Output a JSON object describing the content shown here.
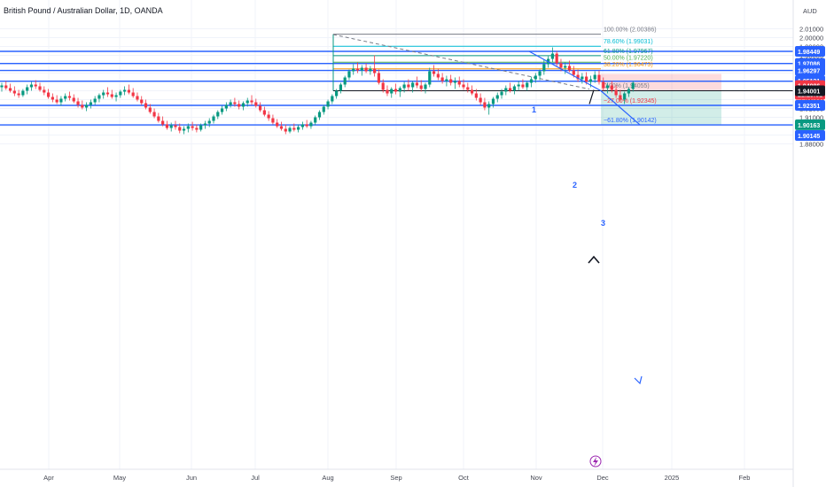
{
  "header": {
    "symbol_title": "British Pound / Australian Dollar, 1D, OANDA",
    "currency": "AUD"
  },
  "chart_data": {
    "type": "candlestick",
    "ylim": [
      1.88,
      2.015
    ],
    "y_ticks": [
      "2.01000",
      "2.00000",
      "1.99000",
      "1.98000",
      "1.97000",
      "1.96000",
      "1.95000",
      "1.94000",
      "1.93000",
      "1.92000",
      "1.91000",
      "1.90000",
      "1.89000",
      "1.88000"
    ],
    "x_ticks": [
      "Apr",
      "May",
      "Jun",
      "Jul",
      "Aug",
      "Sep",
      "Oct",
      "Nov",
      "Dec",
      "2025",
      "Feb"
    ],
    "series": [
      {
        "type": "candlestick",
        "values": [
          [
            1.944,
            1.949,
            1.939,
            1.946
          ],
          [
            1.946,
            1.951,
            1.941,
            1.943
          ],
          [
            1.943,
            1.948,
            1.938,
            1.94
          ],
          [
            1.94,
            1.945,
            1.934,
            1.937
          ],
          [
            1.937,
            1.941,
            1.932,
            1.935
          ],
          [
            1.935,
            1.942,
            1.933,
            1.94
          ],
          [
            1.94,
            1.947,
            1.936,
            1.944
          ],
          [
            1.944,
            1.95,
            1.94,
            1.947
          ],
          [
            1.947,
            1.952,
            1.942,
            1.945
          ],
          [
            1.945,
            1.949,
            1.939,
            1.941
          ],
          [
            1.941,
            1.945,
            1.935,
            1.938
          ],
          [
            1.938,
            1.942,
            1.931,
            1.933
          ],
          [
            1.933,
            1.937,
            1.927,
            1.93
          ],
          [
            1.93,
            1.935,
            1.925,
            1.927
          ],
          [
            1.927,
            1.934,
            1.923,
            1.931
          ],
          [
            1.931,
            1.937,
            1.928,
            1.934
          ],
          [
            1.934,
            1.939,
            1.929,
            1.932
          ],
          [
            1.932,
            1.936,
            1.926,
            1.928
          ],
          [
            1.928,
            1.932,
            1.921,
            1.924
          ],
          [
            1.924,
            1.929,
            1.919,
            1.921
          ],
          [
            1.921,
            1.927,
            1.917,
            1.924
          ],
          [
            1.924,
            1.93,
            1.92,
            1.927
          ],
          [
            1.927,
            1.934,
            1.924,
            1.931
          ],
          [
            1.931,
            1.937,
            1.927,
            1.935
          ],
          [
            1.935,
            1.941,
            1.931,
            1.938
          ],
          [
            1.938,
            1.944,
            1.933,
            1.936
          ],
          [
            1.936,
            1.941,
            1.931,
            1.933
          ],
          [
            1.933,
            1.938,
            1.928,
            1.935
          ],
          [
            1.935,
            1.941,
            1.932,
            1.939
          ],
          [
            1.939,
            1.945,
            1.935,
            1.941
          ],
          [
            1.941,
            1.947,
            1.936,
            1.938
          ],
          [
            1.938,
            1.943,
            1.932,
            1.934
          ],
          [
            1.934,
            1.938,
            1.928,
            1.93
          ],
          [
            1.93,
            1.934,
            1.924,
            1.926
          ],
          [
            1.926,
            1.93,
            1.919,
            1.921
          ],
          [
            1.921,
            1.925,
            1.914,
            1.916
          ],
          [
            1.916,
            1.92,
            1.909,
            1.911
          ],
          [
            1.911,
            1.915,
            1.904,
            1.906
          ],
          [
            1.906,
            1.911,
            1.9,
            1.902
          ],
          [
            1.902,
            1.906,
            1.896,
            1.898
          ],
          [
            1.898,
            1.904,
            1.894,
            1.901
          ],
          [
            1.901,
            1.906,
            1.896,
            1.899
          ],
          [
            1.899,
            1.903,
            1.892,
            1.895
          ],
          [
            1.895,
            1.9,
            1.891,
            1.897
          ],
          [
            1.897,
            1.903,
            1.893,
            1.9
          ],
          [
            1.9,
            1.905,
            1.895,
            1.898
          ],
          [
            1.898,
            1.902,
            1.893,
            1.896
          ],
          [
            1.896,
            1.903,
            1.894,
            1.901
          ],
          [
            1.901,
            1.906,
            1.897,
            1.903
          ],
          [
            1.903,
            1.909,
            1.899,
            1.906
          ],
          [
            1.906,
            1.913,
            1.903,
            1.911
          ],
          [
            1.911,
            1.918,
            1.908,
            1.916
          ],
          [
            1.916,
            1.923,
            1.913,
            1.92
          ],
          [
            1.92,
            1.927,
            1.917,
            1.924
          ],
          [
            1.924,
            1.93,
            1.921,
            1.927
          ],
          [
            1.927,
            1.932,
            1.922,
            1.925
          ],
          [
            1.925,
            1.929,
            1.919,
            1.922
          ],
          [
            1.922,
            1.928,
            1.918,
            1.926
          ],
          [
            1.926,
            1.932,
            1.922,
            1.929
          ],
          [
            1.929,
            1.935,
            1.924,
            1.927
          ],
          [
            1.927,
            1.931,
            1.921,
            1.923
          ],
          [
            1.923,
            1.927,
            1.916,
            1.918
          ],
          [
            1.918,
            1.922,
            1.911,
            1.913
          ],
          [
            1.913,
            1.917,
            1.906,
            1.909
          ],
          [
            1.909,
            1.913,
            1.902,
            1.904
          ],
          [
            1.904,
            1.908,
            1.898,
            1.9
          ],
          [
            1.9,
            1.905,
            1.895,
            1.897
          ],
          [
            1.897,
            1.902,
            1.891,
            1.894
          ],
          [
            1.894,
            1.9,
            1.892,
            1.898
          ],
          [
            1.898,
            1.903,
            1.894,
            1.896
          ],
          [
            1.896,
            1.902,
            1.893,
            1.899
          ],
          [
            1.899,
            1.905,
            1.896,
            1.902
          ],
          [
            1.902,
            1.907,
            1.898,
            1.9
          ],
          [
            1.9,
            1.906,
            1.897,
            1.904
          ],
          [
            1.904,
            1.912,
            1.901,
            1.91
          ],
          [
            1.91,
            1.918,
            1.907,
            1.916
          ],
          [
            1.916,
            1.924,
            1.913,
            1.922
          ],
          [
            1.922,
            1.93,
            1.919,
            1.928
          ],
          [
            1.928,
            1.936,
            1.925,
            1.934
          ],
          [
            1.934,
            1.942,
            1.931,
            1.94
          ],
          [
            1.94,
            1.949,
            1.937,
            1.947
          ],
          [
            1.947,
            1.957,
            1.944,
            1.955
          ],
          [
            1.955,
            1.964,
            1.952,
            1.962
          ],
          [
            1.962,
            1.97,
            1.958,
            1.965
          ],
          [
            1.965,
            1.972,
            1.96,
            1.963
          ],
          [
            1.963,
            1.969,
            1.957,
            1.966
          ],
          [
            1.966,
            1.971,
            1.96,
            1.962
          ],
          [
            1.962,
            1.968,
            1.958,
            1.965
          ],
          [
            1.965,
            1.98,
            1.956,
            1.96
          ],
          [
            1.96,
            1.964,
            1.947,
            1.949
          ],
          [
            1.949,
            1.953,
            1.938,
            1.941
          ],
          [
            1.941,
            1.946,
            1.934,
            1.937
          ],
          [
            1.937,
            1.944,
            1.932,
            1.942
          ],
          [
            1.942,
            1.948,
            1.936,
            1.939
          ],
          [
            1.939,
            1.945,
            1.933,
            1.943
          ],
          [
            1.943,
            1.95,
            1.938,
            1.947
          ],
          [
            1.947,
            1.953,
            1.94,
            1.944
          ],
          [
            1.944,
            1.951,
            1.938,
            1.949
          ],
          [
            1.949,
            1.956,
            1.943,
            1.946
          ],
          [
            1.946,
            1.952,
            1.939,
            1.942
          ],
          [
            1.942,
            1.949,
            1.937,
            1.947
          ],
          [
            1.947,
            1.966,
            1.944,
            1.962
          ],
          [
            1.962,
            1.969,
            1.956,
            1.959
          ],
          [
            1.959,
            1.965,
            1.952,
            1.955
          ],
          [
            1.955,
            1.96,
            1.948,
            1.951
          ],
          [
            1.951,
            1.957,
            1.945,
            1.953
          ],
          [
            1.953,
            1.958,
            1.946,
            1.949
          ],
          [
            1.949,
            1.955,
            1.942,
            1.951
          ],
          [
            1.951,
            1.956,
            1.944,
            1.947
          ],
          [
            1.947,
            1.953,
            1.941,
            1.944
          ],
          [
            1.944,
            1.949,
            1.938,
            1.941
          ],
          [
            1.941,
            1.946,
            1.935,
            1.937
          ],
          [
            1.937,
            1.942,
            1.929,
            1.932
          ],
          [
            1.932,
            1.937,
            1.924,
            1.927
          ],
          [
            1.927,
            1.932,
            1.918,
            1.921
          ],
          [
            1.921,
            1.928,
            1.913,
            1.925
          ],
          [
            1.925,
            1.933,
            1.921,
            1.931
          ],
          [
            1.931,
            1.938,
            1.927,
            1.935
          ],
          [
            1.935,
            1.942,
            1.931,
            1.939
          ],
          [
            1.939,
            1.946,
            1.935,
            1.943
          ],
          [
            1.943,
            1.949,
            1.938,
            1.94
          ],
          [
            1.94,
            1.947,
            1.936,
            1.945
          ],
          [
            1.945,
            1.951,
            1.94,
            1.947
          ],
          [
            1.947,
            1.953,
            1.942,
            1.944
          ],
          [
            1.944,
            1.951,
            1.94,
            1.949
          ],
          [
            1.949,
            1.956,
            1.944,
            1.953
          ],
          [
            1.953,
            1.96,
            1.949,
            1.957
          ],
          [
            1.957,
            1.964,
            1.952,
            1.962
          ],
          [
            1.962,
            1.975,
            1.958,
            1.97
          ],
          [
            1.97,
            1.979,
            1.966,
            1.976
          ],
          [
            1.976,
            1.989,
            1.972,
            1.982
          ],
          [
            1.982,
            1.985,
            1.968,
            1.971
          ],
          [
            1.971,
            1.976,
            1.962,
            1.966
          ],
          [
            1.966,
            1.972,
            1.959,
            1.968
          ],
          [
            1.968,
            1.974,
            1.961,
            1.963
          ],
          [
            1.963,
            1.968,
            1.955,
            1.958
          ],
          [
            1.958,
            1.964,
            1.95,
            1.953
          ],
          [
            1.953,
            1.96,
            1.948,
            1.956
          ],
          [
            1.956,
            1.961,
            1.947,
            1.95
          ],
          [
            1.95,
            1.957,
            1.944,
            1.953
          ],
          [
            1.953,
            1.962,
            1.949,
            1.958
          ],
          [
            1.958,
            1.963,
            1.947,
            1.95
          ],
          [
            1.95,
            1.955,
            1.94,
            1.943
          ],
          [
            1.943,
            1.949,
            1.937,
            1.946
          ],
          [
            1.946,
            1.951,
            1.938,
            1.941
          ],
          [
            1.941,
            1.946,
            1.932,
            1.935
          ],
          [
            1.935,
            1.941,
            1.928,
            1.93
          ],
          [
            1.93,
            1.939,
            1.925,
            1.937
          ],
          [
            1.937,
            1.944,
            1.933,
            1.942
          ],
          [
            1.942,
            1.951,
            1.939,
            1.949
          ]
        ]
      }
    ],
    "horizontal_levels": [
      "1.98449",
      "1.97086",
      "1.96297",
      "1.95131",
      "1.95077",
      "1.94986",
      "1.94001",
      "1.92351",
      "1.90163",
      "1.90145"
    ],
    "price_badges": [
      {
        "value": "1.98449",
        "kind": "level"
      },
      {
        "value": "1.97086",
        "kind": "level"
      },
      {
        "value": "1.96297",
        "kind": "level"
      },
      {
        "value": "1.95131",
        "kind": "level"
      },
      {
        "value": "1.95077",
        "kind": "red"
      },
      {
        "value": "1.94986",
        "kind": "red"
      },
      {
        "value": "21:29:01",
        "kind": "red"
      },
      {
        "value": "1.94001",
        "kind": "dark"
      },
      {
        "value": "1.92351",
        "kind": "level"
      },
      {
        "value": "1.90163",
        "kind": "green"
      },
      {
        "value": "1.90145",
        "kind": "level"
      }
    ],
    "fib_levels": [
      {
        "label": "100.00% (2.00386)",
        "color": "#787b86"
      },
      {
        "label": "78.60% (1.99031)",
        "color": "#00bcd4"
      },
      {
        "label": "61.80% (1.97967)",
        "color": "#089981"
      },
      {
        "label": "50.00% (1.97220)",
        "color": "#4caf50"
      },
      {
        "label": "38.20% (1.96473)",
        "color": "#ff9800"
      },
      {
        "label": "0.00% (1.94055)",
        "color": "#787b86"
      },
      {
        "label": "−27.00% (1.92345)",
        "color": "#f23645"
      },
      {
        "label": "−61.80% (1.90142)",
        "color": "#2962ff"
      }
    ],
    "wave_labels": [
      "1",
      "2",
      "3"
    ],
    "position": {
      "entry": "1.94986",
      "stop": "1.95077",
      "target": "1.90163"
    },
    "colors": {
      "up": "#089981",
      "down": "#f23645",
      "level": "#2962ff"
    }
  }
}
